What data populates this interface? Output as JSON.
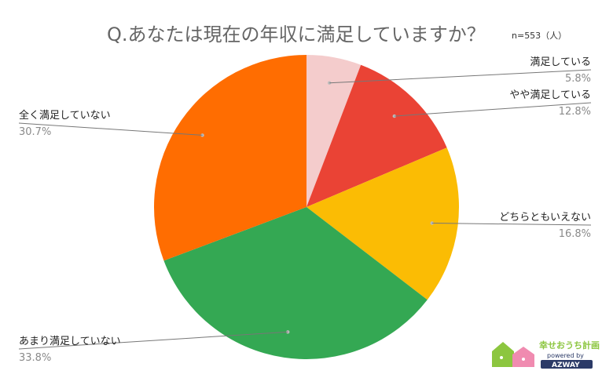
{
  "title": "Q.あなたは現在の年収に満足していますか？",
  "sample_note": "n=553（人）",
  "chart_data": {
    "type": "pie",
    "title": "Q.あなたは現在の年収に満足していますか？",
    "slices": [
      {
        "label": "満足している",
        "value": 5.8,
        "display": "5.8%",
        "color": "#f4cccc"
      },
      {
        "label": "やや満足している",
        "value": 12.8,
        "display": "12.8%",
        "color": "#ea4335"
      },
      {
        "label": "どちらともいえない",
        "value": 16.8,
        "display": "16.8%",
        "color": "#fbbc04"
      },
      {
        "label": "あまり満足していない",
        "value": 33.8,
        "display": "33.8%",
        "color": "#34a853"
      },
      {
        "label": "全く満足していない",
        "value": 30.7,
        "display": "30.7%",
        "color": "#ff6d01"
      }
    ],
    "start_angle_deg": 0,
    "direction": "clockwise",
    "legend": "none"
  },
  "logo": {
    "line1": "幸せおうち計画",
    "line2": "powered by",
    "line3": "AZWAY",
    "colors": {
      "green": "#8cc63f",
      "pink": "#f08bb0",
      "navy": "#2b3a67"
    }
  }
}
